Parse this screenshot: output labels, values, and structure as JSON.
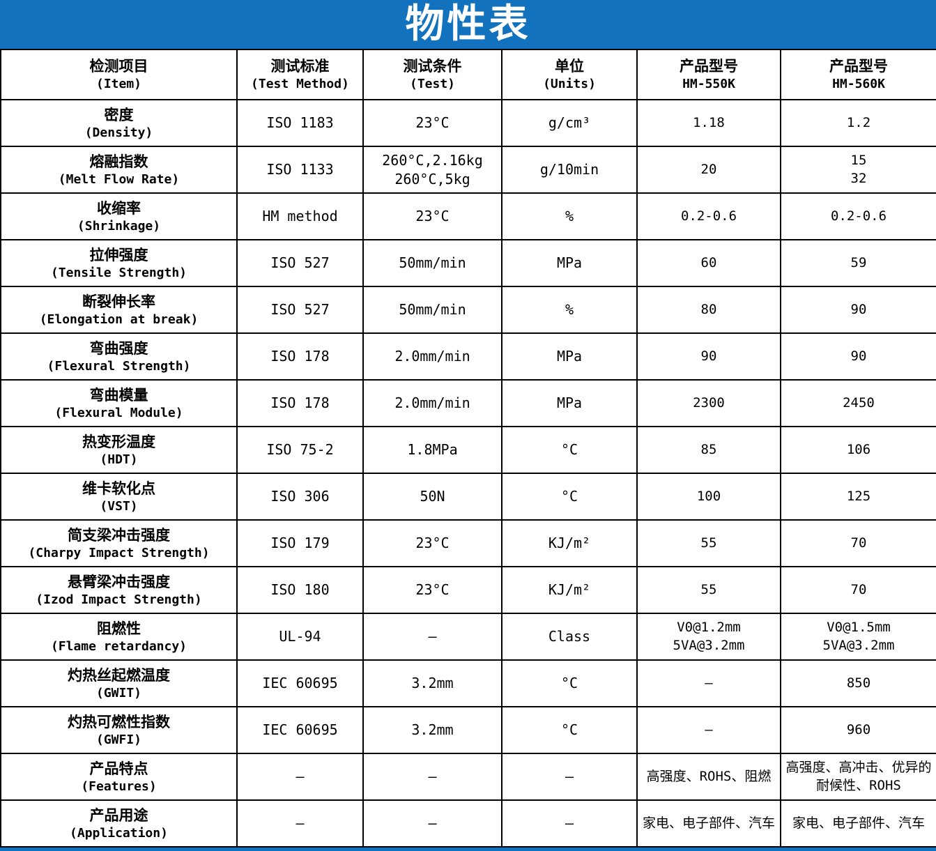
{
  "title": "物性表",
  "colors": {
    "header_bg": "#1272BD",
    "title_text": "#FFFFFF",
    "table_border": "#000000"
  },
  "table": {
    "columns": [
      {
        "zh": "检测项目",
        "en": "(Item)"
      },
      {
        "zh": "测试标准",
        "en": "(Test Method)"
      },
      {
        "zh": "测试条件",
        "en": "(Test)"
      },
      {
        "zh": "单位",
        "en": "(Units)"
      },
      {
        "zh": "产品型号",
        "en": "HM-550K"
      },
      {
        "zh": "产品型号",
        "en": "HM-560K"
      }
    ],
    "rows": [
      {
        "item_zh": "密度",
        "item_en": "(Density)",
        "method": "ISO 1183",
        "condition": "23°C",
        "units": "g/cm³",
        "hm550k": "1.18",
        "hm560k": "1.2"
      },
      {
        "item_zh": "熔融指数",
        "item_en": "(Melt Flow Rate)",
        "method": "ISO 1133",
        "condition": "260°C,2.16kg\n260°C,5kg",
        "units": "g/10min",
        "hm550k": "20",
        "hm560k": "15\n32"
      },
      {
        "item_zh": "收缩率",
        "item_en": "(Shrinkage)",
        "method": "HM method",
        "condition": "23°C",
        "units": "%",
        "hm550k": "0.2-0.6",
        "hm560k": "0.2-0.6"
      },
      {
        "item_zh": "拉伸强度",
        "item_en": "(Tensile Strength)",
        "method": "ISO 527",
        "condition": "50mm/min",
        "units": "MPa",
        "hm550k": "60",
        "hm560k": "59"
      },
      {
        "item_zh": "断裂伸长率",
        "item_en": "(Elongation at break)",
        "method": "ISO 527",
        "condition": "50mm/min",
        "units": "%",
        "hm550k": "80",
        "hm560k": "90"
      },
      {
        "item_zh": "弯曲强度",
        "item_en": "(Flexural Strength)",
        "method": "ISO 178",
        "condition": "2.0mm/min",
        "units": "MPa",
        "hm550k": "90",
        "hm560k": "90"
      },
      {
        "item_zh": "弯曲模量",
        "item_en": "(Flexural Module)",
        "method": "ISO 178",
        "condition": "2.0mm/min",
        "units": "MPa",
        "hm550k": "2300",
        "hm560k": "2450"
      },
      {
        "item_zh": "热变形温度",
        "item_en": "(HDT)",
        "method": "ISO 75-2",
        "condition": "1.8MPa",
        "units": "°C",
        "hm550k": "85",
        "hm560k": "106"
      },
      {
        "item_zh": "维卡软化点",
        "item_en": "(VST)",
        "method": "ISO 306",
        "condition": "50N",
        "units": "°C",
        "hm550k": "100",
        "hm560k": "125"
      },
      {
        "item_zh": "简支梁冲击强度",
        "item_en": "(Charpy Impact Strength)",
        "method": "ISO 179",
        "condition": "23°C",
        "units": "KJ/m²",
        "hm550k": "55",
        "hm560k": "70"
      },
      {
        "item_zh": "悬臂梁冲击强度",
        "item_en": "(Izod Impact Strength)",
        "method": "ISO 180",
        "condition": "23°C",
        "units": "KJ/m²",
        "hm550k": "55",
        "hm560k": "70"
      },
      {
        "item_zh": "阻燃性",
        "item_en": "(Flame retardancy)",
        "method": "UL-94",
        "condition": "–",
        "units": "Class",
        "hm550k": "V0@1.2mm\n5VA@3.2mm",
        "hm560k": "V0@1.5mm\n5VA@3.2mm"
      },
      {
        "item_zh": "灼热丝起燃温度",
        "item_en": "(GWIT)",
        "method": "IEC 60695",
        "condition": "3.2mm",
        "units": "°C",
        "hm550k": "–",
        "hm560k": "850"
      },
      {
        "item_zh": "灼热可燃性指数",
        "item_en": "(GWFI)",
        "method": "IEC 60695",
        "condition": "3.2mm",
        "units": "°C",
        "hm550k": "–",
        "hm560k": "960"
      },
      {
        "item_zh": "产品特点",
        "item_en": "(Features)",
        "method": "–",
        "condition": "–",
        "units": "–",
        "hm550k": "高强度、ROHS、阻燃",
        "hm560k": "高强度、高冲击、优异的耐候性、ROHS"
      },
      {
        "item_zh": "产品用途",
        "item_en": "(Application)",
        "method": "–",
        "condition": "–",
        "units": "–",
        "hm550k": "家电、电子部件、汽车",
        "hm560k": "家电、电子部件、汽车"
      }
    ]
  }
}
